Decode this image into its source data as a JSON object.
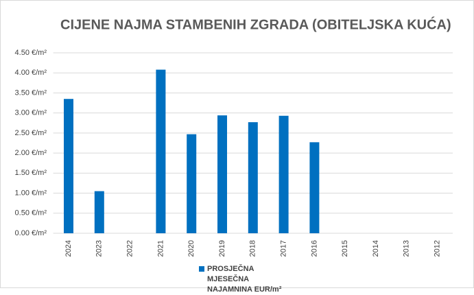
{
  "chart_data": {
    "type": "bar",
    "title": "CIJENE NAJMA STAMBENIH ZGRADA (OBITELJSKA KUĆA)",
    "categories": [
      "2024",
      "2023",
      "2022",
      "2021",
      "2020",
      "2019",
      "2018",
      "2017",
      "2016",
      "2015",
      "2014",
      "2013",
      "2012"
    ],
    "series": [
      {
        "name": "PROSJEČNA MJESEČNA NAJAMNINA EUR/m²",
        "color": "#0070c0",
        "values": [
          3.35,
          1.05,
          null,
          4.08,
          2.47,
          2.94,
          2.77,
          2.93,
          2.27,
          null,
          null,
          null,
          null
        ]
      }
    ],
    "ylim": [
      0,
      4.5
    ],
    "yticks": [
      {
        "value": 0,
        "label": "0.00 €/m²"
      },
      {
        "value": 0.5,
        "label": "0.50 €/m²"
      },
      {
        "value": 1,
        "label": "1.00 €/m²"
      },
      {
        "value": 1.5,
        "label": "1.50 €/m²"
      },
      {
        "value": 2,
        "label": "2.00 €/m²"
      },
      {
        "value": 2.5,
        "label": "2.50 €/m²"
      },
      {
        "value": 3,
        "label": "3.00 €/m²"
      },
      {
        "value": 3.5,
        "label": "3.50 €/m²"
      },
      {
        "value": 4,
        "label": "4.00 €/m²"
      },
      {
        "value": 4.5,
        "label": "4.50 €/m²"
      }
    ],
    "grid": true,
    "legend": "bottom"
  }
}
